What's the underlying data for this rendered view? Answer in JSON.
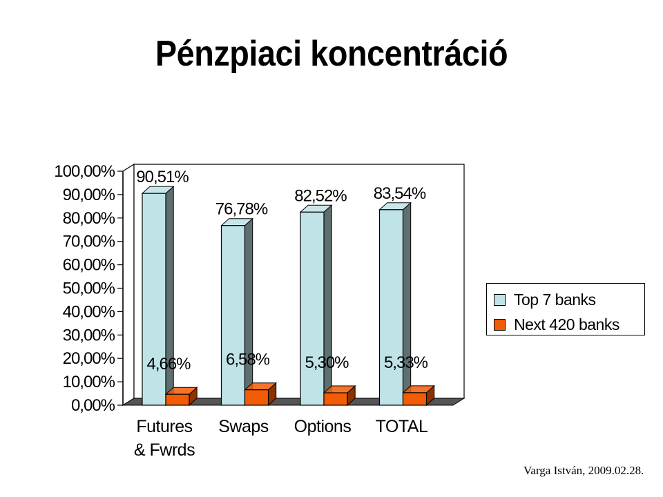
{
  "title": "Pénzpiaci koncentráció",
  "author_note": "Varga István, 2009.02.28.",
  "colors": {
    "top_face": "#bfe3e7",
    "top_side": "#5f6f70",
    "next_face": "#f25c05",
    "next_side": "#8a3200",
    "floor": "#555555"
  },
  "chart_data": {
    "type": "bar",
    "title": "Pénzpiaci koncentráció",
    "categories": [
      [
        "Futures",
        "& Fwrds"
      ],
      [
        "Swaps"
      ],
      [
        "Options"
      ],
      [
        "TOTAL"
      ]
    ],
    "series": [
      {
        "name": "Top 7 banks",
        "values": [
          90.51,
          76.78,
          82.52,
          83.54
        ],
        "labels": [
          "90,51%",
          "76,78%",
          "82,52%",
          "83,54%"
        ]
      },
      {
        "name": "Next 420 banks",
        "values": [
          4.66,
          6.58,
          5.3,
          5.33
        ],
        "labels": [
          "4,66%",
          "6,58%",
          "5,30%",
          "5,33%"
        ]
      }
    ],
    "y_ticks": [
      "0,00%",
      "10,00%",
      "20,00%",
      "30,00%",
      "40,00%",
      "50,00%",
      "60,00%",
      "70,00%",
      "80,00%",
      "90,00%",
      "100,00%"
    ],
    "ylim": [
      0,
      100
    ],
    "grid": false,
    "legend_position": "right"
  }
}
